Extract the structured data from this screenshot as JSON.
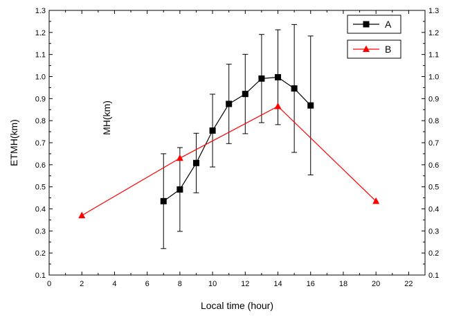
{
  "chart_data": {
    "type": "line",
    "xlabel": "Local time (hour)",
    "ylabel": "ETMH(km)",
    "inner_label": "MH(km)",
    "xlim": [
      0,
      23
    ],
    "ylim": [
      0.1,
      1.3
    ],
    "xticks": [
      0,
      2,
      4,
      6,
      8,
      10,
      12,
      14,
      16,
      18,
      20,
      22
    ],
    "yticks": [
      0.1,
      0.2,
      0.3,
      0.4,
      0.5,
      0.6,
      0.7,
      0.8,
      0.9,
      1.0,
      1.1,
      1.2,
      1.3
    ],
    "ytick_labels": [
      "0.1",
      "0.2",
      "0.3",
      "0.4",
      "0.5",
      "0.6",
      "0.7",
      "0.8",
      "0.9",
      "1.0",
      "1.1",
      "1.2",
      "1.3"
    ],
    "legend_position": "top-right",
    "series": [
      {
        "name": "A",
        "color": "#000000",
        "marker": "square",
        "x": [
          7,
          8,
          9,
          10,
          11,
          12,
          13,
          14,
          15,
          16
        ],
        "y": [
          0.435,
          0.488,
          0.608,
          0.755,
          0.876,
          0.921,
          0.991,
          0.997,
          0.946,
          0.869
        ],
        "error": [
          0.215,
          0.19,
          0.135,
          0.165,
          0.18,
          0.18,
          0.2,
          0.215,
          0.29,
          0.315
        ]
      },
      {
        "name": "B",
        "color": "#ff0000",
        "marker": "triangle",
        "x": [
          2,
          8,
          14,
          20
        ],
        "y": [
          0.37,
          0.63,
          0.865,
          0.435
        ]
      }
    ]
  }
}
